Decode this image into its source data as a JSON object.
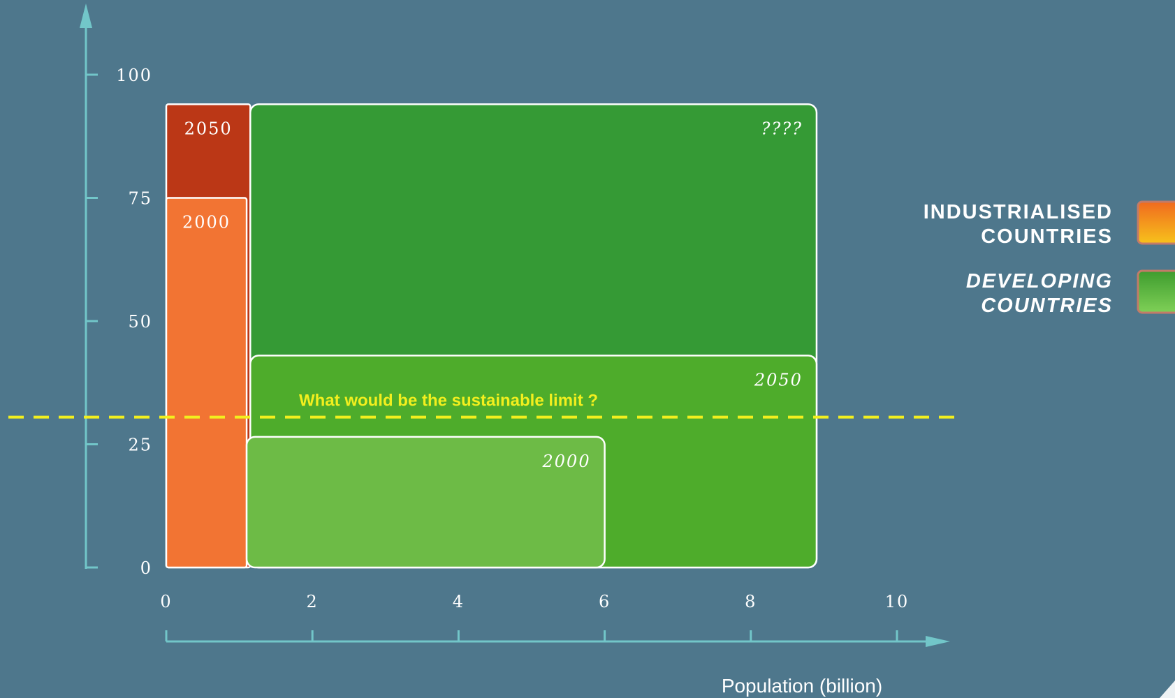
{
  "chart_data": {
    "type": "area",
    "title": "",
    "xlabel": "Population (billion)",
    "ylabel": "",
    "xlim": [
      0,
      10
    ],
    "ylim": [
      0,
      100
    ],
    "x_ticks": [
      "0",
      "2",
      "4",
      "6",
      "8",
      "10"
    ],
    "y_ticks": [
      "0",
      "25",
      "50",
      "75",
      "100"
    ],
    "grid": false,
    "legend_position": "right",
    "legend": [
      {
        "name": "INDUSTRIALISED COUNTRIES",
        "line1": "INDUSTRIALISED",
        "line2": "COUNTRIES",
        "color": "#f06a1e",
        "color_end": "#f7c21c",
        "italic": false
      },
      {
        "name": "DEVELOPING COUNTRIES",
        "line1": "DEVELOPING",
        "line2": "COUNTRIES",
        "color": "#3e9c2e",
        "color_end": "#7fd057",
        "italic": true
      }
    ],
    "series": [
      {
        "group": "industrialised",
        "label": "2050",
        "x0": 0,
        "x1": 1.15,
        "y": 94,
        "color": "#bb3716",
        "italic": false
      },
      {
        "group": "industrialised",
        "label": "2000",
        "x0": 0,
        "x1": 1.1,
        "y": 75,
        "color": "#f27433",
        "italic": false
      },
      {
        "group": "developing",
        "label": "????",
        "x0": 1.15,
        "x1": 8.9,
        "y": 94,
        "color": "#359a35",
        "italic": true
      },
      {
        "group": "developing",
        "label": "2050",
        "x0": 1.15,
        "x1": 8.9,
        "y": 43,
        "color": "#4eac2b",
        "italic": true
      },
      {
        "group": "developing",
        "label": "2000",
        "x0": 1.1,
        "x1": 6.0,
        "y": 26.5,
        "color": "#6dbb46",
        "italic": true
      }
    ],
    "sustainable_limit": {
      "y": 30.5,
      "label": "What would be the sustainable limit ?",
      "color": "#f2ef1e"
    }
  }
}
